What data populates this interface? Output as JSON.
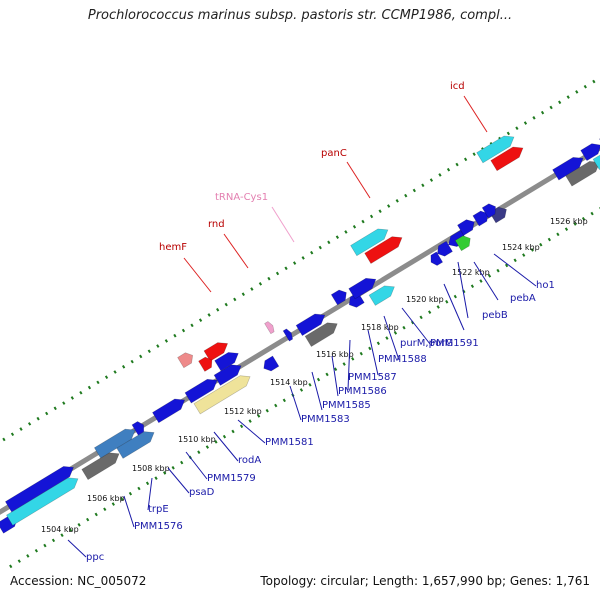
{
  "header": {
    "title": "Prochlorococcus marinus subsp. pastoris str. CCMP1986, compl..."
  },
  "footer": {
    "accession": "Accession: NC_005072",
    "summary": "Topology: circular; Length: 1,657,990 bp; Genes: 1,761"
  },
  "colors": {
    "backbone": "#8c8c8c",
    "ticks": "#1f7a1f",
    "blue": "#1414d6",
    "red": "#ee1111",
    "cyan": "#33d6e6",
    "gray": "#6a6a6a",
    "khaki": "#efe39a",
    "steel": "#3f7fc0",
    "slate": "#3a3a86",
    "green": "#33cc33",
    "salmon": "#ee8a8a",
    "pink": "#f0a0cc"
  },
  "kbp_labels": [
    "1504 kbp",
    "1506 kbp",
    "1508 kbp",
    "1510 kbp",
    "1512 kbp",
    "1514 kbp",
    "1516 kbp",
    "1518 kbp",
    "1520 kbp",
    "1522 kbp",
    "1524 kbp",
    "1526 kbp"
  ],
  "inner_gene_labels": [
    "ppc",
    "PMM1576",
    "trpE",
    "psaD",
    "PMM1579",
    "rodA",
    "PMM1581",
    "PMM1583",
    "PMM1585",
    "PMM1586",
    "PMM1587",
    "PMM1588",
    "purM,purG",
    "PMM1591",
    "pebB",
    "pebA",
    "ho1"
  ],
  "outer_gene_labels": [
    "hemF",
    "rnd",
    "tRNA-Cys1",
    "panC",
    "icd"
  ]
}
